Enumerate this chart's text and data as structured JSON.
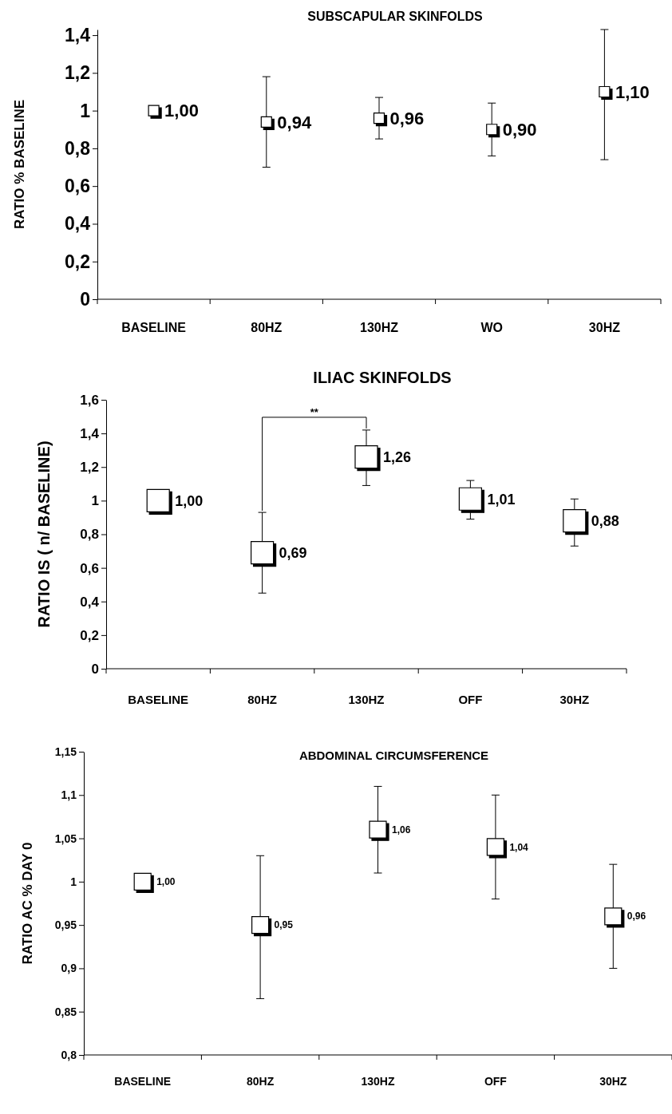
{
  "chart_data": [
    {
      "type": "scatter",
      "title": "SUBSCAPULAR SKINFOLDS",
      "ylabel": "RATIO % BASELINE",
      "categories": [
        "BASELINE",
        "80HZ",
        "130HZ",
        "WO",
        "30HZ"
      ],
      "ylim": [
        0,
        1.43
      ],
      "yticks": [
        {
          "value": 0,
          "label": "0"
        },
        {
          "value": 0.2,
          "label": "0,2"
        },
        {
          "value": 0.4,
          "label": "0,4"
        },
        {
          "value": 0.6,
          "label": "0,6"
        },
        {
          "value": 0.8,
          "label": "0,8"
        },
        {
          "value": 1,
          "label": "1"
        },
        {
          "value": 1.2,
          "label": "1,2"
        },
        {
          "value": 1.4,
          "label": "1,4"
        }
      ],
      "marker": "square",
      "color": "#ffffff",
      "values": [
        1.0,
        0.94,
        0.96,
        0.9,
        1.1
      ],
      "errors": [
        null,
        [
          0.7,
          1.18
        ],
        [
          0.85,
          1.07
        ],
        [
          0.76,
          1.04
        ],
        [
          0.74,
          1.43
        ]
      ],
      "value_labels": [
        "1,00",
        "0,94",
        "0,96",
        "0,90",
        "1,10"
      ]
    },
    {
      "type": "scatter",
      "title": "ILIAC SKINFOLDS",
      "ylabel": "RATIO IS ( n/ BASELINE)",
      "categories": [
        "BASELINE",
        "80HZ",
        "130HZ",
        "OFF",
        "30HZ"
      ],
      "ylim": [
        0,
        1.6
      ],
      "yticks": [
        {
          "value": 0,
          "label": "0"
        },
        {
          "value": 0.2,
          "label": "0,2"
        },
        {
          "value": 0.4,
          "label": "0,4"
        },
        {
          "value": 0.6,
          "label": "0,6"
        },
        {
          "value": 0.8,
          "label": "0,8"
        },
        {
          "value": 1,
          "label": "1"
        },
        {
          "value": 1.2,
          "label": "1,2"
        },
        {
          "value": 1.4,
          "label": "1,4"
        },
        {
          "value": 1.6,
          "label": "1,6"
        }
      ],
      "marker": "square",
      "color": "#ffffff",
      "values": [
        1.0,
        0.69,
        1.26,
        1.01,
        0.88
      ],
      "errors": [
        null,
        [
          0.45,
          0.93
        ],
        [
          1.09,
          1.42
        ],
        [
          0.89,
          1.12
        ],
        [
          0.73,
          1.01
        ]
      ],
      "value_labels": [
        "1,00",
        "0,69",
        "1,26",
        "1,01",
        "0,88"
      ],
      "annotations": [
        "**"
      ]
    },
    {
      "type": "scatter",
      "title": "ABDOMINAL CIRCUMSFERENCE",
      "ylabel": "RATIO AC % DAY 0",
      "categories": [
        "BASELINE",
        "80HZ",
        "130HZ",
        "OFF",
        "30HZ"
      ],
      "ylim": [
        0.8,
        1.15
      ],
      "yticks": [
        {
          "value": 0.8,
          "label": "0,8"
        },
        {
          "value": 0.85,
          "label": "0,85"
        },
        {
          "value": 0.9,
          "label": "0,9"
        },
        {
          "value": 0.95,
          "label": "0,95"
        },
        {
          "value": 1,
          "label": "1"
        },
        {
          "value": 1.05,
          "label": "1,05"
        },
        {
          "value": 1.1,
          "label": "1,1"
        },
        {
          "value": 1.15,
          "label": "1,15"
        }
      ],
      "marker": "square",
      "color": "#ffffff",
      "values": [
        1.0,
        0.95,
        1.06,
        1.04,
        0.96
      ],
      "errors": [
        null,
        [
          0.865,
          1.03
        ],
        [
          1.01,
          1.11
        ],
        [
          0.98,
          1.1
        ],
        [
          0.9,
          1.02
        ]
      ],
      "value_labels": [
        "1,00",
        "0,95",
        "1,06",
        "1,04",
        "0,96"
      ]
    }
  ]
}
